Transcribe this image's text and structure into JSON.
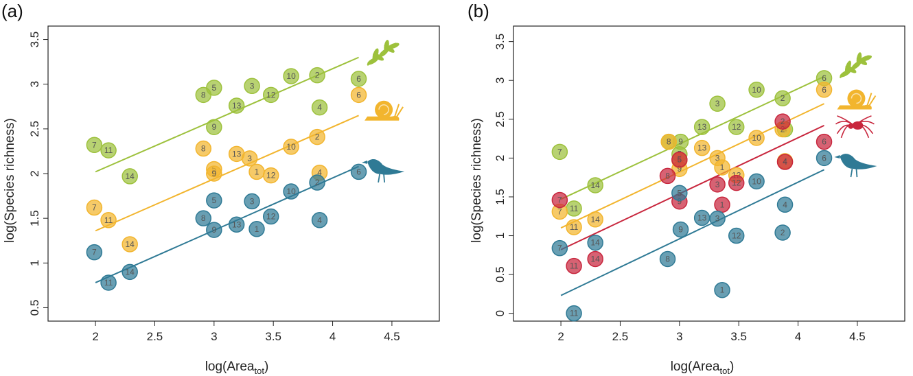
{
  "colors": {
    "plants": "#9dc13c",
    "snails": "#f2b52e",
    "spiders": "#c8263d",
    "birds": "#2f7a95",
    "frame": "#222222"
  },
  "icons": {
    "plants": "leaf-sprig-icon",
    "snails": "snail-icon",
    "spiders": "spider-icon",
    "birds": "bird-icon"
  },
  "chart_data": [
    {
      "panel_label": "(a)",
      "type": "scatter",
      "xlabel": "log(Area",
      "xlabel_sub": "tot",
      "xlabel_close": ")",
      "ylabel": "log(Species richness)",
      "xlim": [
        1.6,
        4.9
      ],
      "ylim": [
        0.35,
        3.65
      ],
      "x_ticks": [
        2,
        2.5,
        3,
        3.5,
        4,
        4.5
      ],
      "x_tick_labels": [
        "2",
        "2.5",
        "3",
        "3.5",
        "4",
        "4.5"
      ],
      "y_ticks": [
        0.5,
        1,
        1.5,
        2,
        2.5,
        3,
        3.5
      ],
      "y_tick_labels": [
        "0.5",
        "1",
        "1.5",
        "2",
        "2.5",
        "3",
        "3.5"
      ],
      "series": [
        {
          "group": "plants",
          "fit": [
            [
              2.0,
              2.02
            ],
            [
              4.22,
              3.3
            ]
          ],
          "points": [
            {
              "label": "7",
              "x": 1.99,
              "y": 2.32
            },
            {
              "label": "11",
              "x": 2.11,
              "y": 2.26
            },
            {
              "label": "14",
              "x": 2.29,
              "y": 1.97
            },
            {
              "label": "8",
              "x": 2.91,
              "y": 2.88
            },
            {
              "label": "5",
              "x": 3.0,
              "y": 2.96
            },
            {
              "label": "9",
              "x": 3.0,
              "y": 2.52
            },
            {
              "label": "13",
              "x": 3.19,
              "y": 2.76
            },
            {
              "label": "3",
              "x": 3.32,
              "y": 2.98
            },
            {
              "label": "12",
              "x": 3.48,
              "y": 2.88
            },
            {
              "label": "10",
              "x": 3.65,
              "y": 3.09
            },
            {
              "label": "2",
              "x": 3.87,
              "y": 3.1
            },
            {
              "label": "4",
              "x": 3.89,
              "y": 2.74
            },
            {
              "label": "6",
              "x": 4.22,
              "y": 3.06
            }
          ]
        },
        {
          "group": "snails",
          "fit": [
            [
              2.0,
              1.36
            ],
            [
              4.22,
              2.65
            ]
          ],
          "points": [
            {
              "label": "7",
              "x": 1.99,
              "y": 1.62
            },
            {
              "label": "11",
              "x": 2.11,
              "y": 1.48
            },
            {
              "label": "14",
              "x": 2.29,
              "y": 1.21
            },
            {
              "label": "8",
              "x": 2.91,
              "y": 2.28
            },
            {
              "label": "5",
              "x": 3.0,
              "y": 2.05
            },
            {
              "label": "9",
              "x": 3.0,
              "y": 2.0
            },
            {
              "label": "13",
              "x": 3.19,
              "y": 2.22
            },
            {
              "label": "3",
              "x": 3.3,
              "y": 2.17
            },
            {
              "label": "1",
              "x": 3.36,
              "y": 2.02
            },
            {
              "label": "12",
              "x": 3.48,
              "y": 1.98
            },
            {
              "label": "10",
              "x": 3.65,
              "y": 2.3
            },
            {
              "label": "2",
              "x": 3.87,
              "y": 2.41
            },
            {
              "label": "4",
              "x": 3.89,
              "y": 2.01
            },
            {
              "label": "6",
              "x": 4.22,
              "y": 2.88
            }
          ]
        },
        {
          "group": "birds",
          "fit": [
            [
              2.0,
              0.78
            ],
            [
              4.22,
              2.08
            ]
          ],
          "points": [
            {
              "label": "7",
              "x": 1.99,
              "y": 1.12
            },
            {
              "label": "11",
              "x": 2.11,
              "y": 0.78
            },
            {
              "label": "14",
              "x": 2.29,
              "y": 0.9
            },
            {
              "label": "8",
              "x": 2.91,
              "y": 1.5
            },
            {
              "label": "5",
              "x": 3.0,
              "y": 1.7
            },
            {
              "label": "9",
              "x": 3.0,
              "y": 1.37
            },
            {
              "label": "13",
              "x": 3.19,
              "y": 1.43
            },
            {
              "label": "3",
              "x": 3.32,
              "y": 1.69
            },
            {
              "label": "1",
              "x": 3.36,
              "y": 1.38
            },
            {
              "label": "12",
              "x": 3.48,
              "y": 1.52
            },
            {
              "label": "10",
              "x": 3.65,
              "y": 1.8
            },
            {
              "label": "2",
              "x": 3.87,
              "y": 1.9
            },
            {
              "label": "4",
              "x": 3.89,
              "y": 1.48
            },
            {
              "label": "6",
              "x": 4.22,
              "y": 2.02
            }
          ]
        }
      ],
      "icon_anchors": [
        {
          "group": "plants",
          "x": 4.42,
          "y": 3.32
        },
        {
          "group": "snails",
          "x": 4.42,
          "y": 2.7
        },
        {
          "group": "birds",
          "x": 4.42,
          "y": 2.07
        }
      ]
    },
    {
      "panel_label": "(b)",
      "type": "scatter",
      "xlabel": "log(Area",
      "xlabel_sub": "tot",
      "xlabel_close": ")",
      "ylabel": "log(Species richness)",
      "xlim": [
        1.6,
        4.9
      ],
      "ylim": [
        -0.1,
        3.7
      ],
      "x_ticks": [
        2,
        2.5,
        3,
        3.5,
        4,
        4.5
      ],
      "x_tick_labels": [
        "2",
        "2.5",
        "3",
        "3.5",
        "4",
        "4.5"
      ],
      "y_ticks": [
        0,
        0.5,
        1,
        1.5,
        2,
        2.5,
        3,
        3.5
      ],
      "y_tick_labels": [
        "0",
        "0.5",
        "1",
        "1.5",
        "2",
        "2.5",
        "3",
        "3.5"
      ],
      "series": [
        {
          "group": "plants",
          "fit": [
            [
              2.0,
              1.47
            ],
            [
              4.22,
              3.05
            ]
          ],
          "points": [
            {
              "label": "7",
              "x": 1.99,
              "y": 2.08
            },
            {
              "label": "11",
              "x": 2.11,
              "y": 1.35
            },
            {
              "label": "14",
              "x": 2.29,
              "y": 1.65
            },
            {
              "label": "8",
              "x": 2.91,
              "y": 2.21
            },
            {
              "label": "5",
              "x": 3.0,
              "y": 2.05
            },
            {
              "label": "9",
              "x": 3.01,
              "y": 2.21
            },
            {
              "label": "13",
              "x": 3.19,
              "y": 2.4
            },
            {
              "label": "3",
              "x": 3.32,
              "y": 2.7
            },
            {
              "label": "12",
              "x": 3.48,
              "y": 2.4
            },
            {
              "label": "10",
              "x": 3.65,
              "y": 2.88
            },
            {
              "label": "2",
              "x": 3.87,
              "y": 2.77
            },
            {
              "label": "4",
              "x": 3.89,
              "y": 2.37
            },
            {
              "label": "6",
              "x": 4.22,
              "y": 3.03
            }
          ]
        },
        {
          "group": "snails",
          "fit": [
            [
              2.0,
              1.1
            ],
            [
              4.22,
              2.7
            ]
          ],
          "points": [
            {
              "label": "7",
              "x": 1.99,
              "y": 1.31
            },
            {
              "label": "11",
              "x": 2.11,
              "y": 1.11
            },
            {
              "label": "14",
              "x": 2.29,
              "y": 1.21
            },
            {
              "label": "8",
              "x": 2.91,
              "y": 2.21
            },
            {
              "label": "5",
              "x": 3.0,
              "y": 1.97
            },
            {
              "label": "9",
              "x": 3.0,
              "y": 1.86
            },
            {
              "label": "13",
              "x": 3.19,
              "y": 2.13
            },
            {
              "label": "3",
              "x": 3.32,
              "y": 2.0
            },
            {
              "label": "1",
              "x": 3.36,
              "y": 1.88
            },
            {
              "label": "12",
              "x": 3.48,
              "y": 1.78
            },
            {
              "label": "10",
              "x": 3.65,
              "y": 2.26
            },
            {
              "label": "2",
              "x": 3.87,
              "y": 2.37
            },
            {
              "label": "4",
              "x": 3.89,
              "y": 1.96
            },
            {
              "label": "6",
              "x": 4.22,
              "y": 2.88
            }
          ]
        },
        {
          "group": "spiders",
          "fit": [
            [
              2.0,
              0.82
            ],
            [
              4.22,
              2.42
            ]
          ],
          "points": [
            {
              "label": "7",
              "x": 1.99,
              "y": 1.46
            },
            {
              "label": "11",
              "x": 2.11,
              "y": 0.61
            },
            {
              "label": "14",
              "x": 2.29,
              "y": 0.7
            },
            {
              "label": "8",
              "x": 2.9,
              "y": 1.77
            },
            {
              "label": "5",
              "x": 3.0,
              "y": 1.98
            },
            {
              "label": "9",
              "x": 3.0,
              "y": 1.44
            },
            {
              "label": "3",
              "x": 3.32,
              "y": 1.66
            },
            {
              "label": "1",
              "x": 3.36,
              "y": 1.4
            },
            {
              "label": "12",
              "x": 3.48,
              "y": 1.68
            },
            {
              "label": "2",
              "x": 3.87,
              "y": 2.47
            },
            {
              "label": "4",
              "x": 3.89,
              "y": 1.95
            },
            {
              "label": "6",
              "x": 4.22,
              "y": 2.21
            }
          ]
        },
        {
          "group": "birds",
          "fit": [
            [
              2.0,
              0.23
            ],
            [
              4.22,
              1.85
            ]
          ],
          "points": [
            {
              "label": "7",
              "x": 1.99,
              "y": 0.84
            },
            {
              "label": "11",
              "x": 2.11,
              "y": 0.0
            },
            {
              "label": "14",
              "x": 2.29,
              "y": 0.91
            },
            {
              "label": "8",
              "x": 2.9,
              "y": 0.7
            },
            {
              "label": "5",
              "x": 3.0,
              "y": 1.55
            },
            {
              "label": "9",
              "x": 3.01,
              "y": 1.08
            },
            {
              "label": "13",
              "x": 3.19,
              "y": 1.23
            },
            {
              "label": "3",
              "x": 3.32,
              "y": 1.22
            },
            {
              "label": "1",
              "x": 3.36,
              "y": 0.3
            },
            {
              "label": "12",
              "x": 3.48,
              "y": 1.0
            },
            {
              "label": "10",
              "x": 3.65,
              "y": 1.7
            },
            {
              "label": "2",
              "x": 3.87,
              "y": 1.04
            },
            {
              "label": "4",
              "x": 3.89,
              "y": 1.4
            },
            {
              "label": "6",
              "x": 4.22,
              "y": 2.0
            }
          ]
        }
      ],
      "icon_anchors": [
        {
          "group": "plants",
          "x": 4.48,
          "y": 3.16
        },
        {
          "group": "snails",
          "x": 4.48,
          "y": 2.75
        },
        {
          "group": "spiders",
          "x": 4.48,
          "y": 2.42
        },
        {
          "group": "birds",
          "x": 4.48,
          "y": 1.95
        }
      ]
    }
  ]
}
